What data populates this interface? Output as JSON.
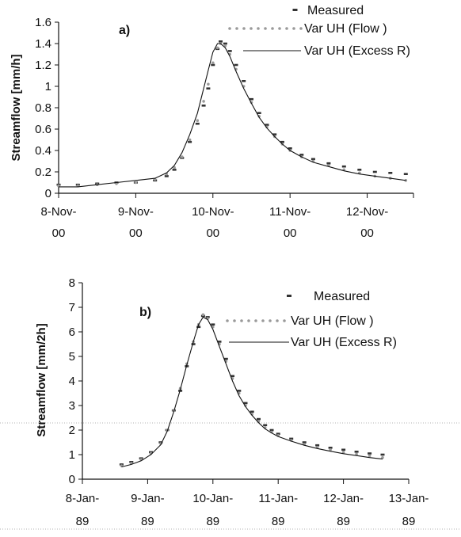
{
  "chart_data": [
    {
      "type": "line",
      "panel_label": "a)",
      "ylabel": "Streamflow [mm/h]",
      "xlabel": "",
      "x_unit": "days",
      "xlim": [
        0,
        4.6
      ],
      "ylim": [
        0,
        1.6
      ],
      "yticks": [
        "0",
        "0.2",
        "0.4",
        "0.6",
        "0.8",
        "1",
        "1.2",
        "1.4",
        "1.6"
      ],
      "xticks": [
        {
          "x": 0,
          "line1": "8-Nov-",
          "line2": "00"
        },
        {
          "x": 1,
          "line1": "9-Nov-",
          "line2": "00"
        },
        {
          "x": 2,
          "line1": "10-Nov-",
          "line2": "00"
        },
        {
          "x": 3,
          "line1": "11-Nov-",
          "line2": "00"
        },
        {
          "x": 4,
          "line1": "12-Nov-",
          "line2": "00"
        }
      ],
      "legend_position": "top-right",
      "series": [
        {
          "name": "Measured",
          "style": "dash-markers",
          "points": [
            [
              0.0,
              0.08
            ],
            [
              0.25,
              0.08
            ],
            [
              0.5,
              0.09
            ],
            [
              0.75,
              0.1
            ],
            [
              1.0,
              0.1
            ],
            [
              1.25,
              0.12
            ],
            [
              1.4,
              0.16
            ],
            [
              1.5,
              0.22
            ],
            [
              1.6,
              0.33
            ],
            [
              1.7,
              0.48
            ],
            [
              1.8,
              0.65
            ],
            [
              1.88,
              0.82
            ],
            [
              1.94,
              0.98
            ],
            [
              2.0,
              1.2
            ],
            [
              2.06,
              1.35
            ],
            [
              2.1,
              1.42
            ],
            [
              2.16,
              1.4
            ],
            [
              2.22,
              1.33
            ],
            [
              2.3,
              1.2
            ],
            [
              2.4,
              1.05
            ],
            [
              2.5,
              0.88
            ],
            [
              2.6,
              0.75
            ],
            [
              2.7,
              0.64
            ],
            [
              2.8,
              0.55
            ],
            [
              2.9,
              0.48
            ],
            [
              3.0,
              0.42
            ],
            [
              3.15,
              0.36
            ],
            [
              3.3,
              0.32
            ],
            [
              3.5,
              0.28
            ],
            [
              3.7,
              0.25
            ],
            [
              3.9,
              0.22
            ],
            [
              4.1,
              0.2
            ],
            [
              4.3,
              0.19
            ],
            [
              4.5,
              0.18
            ]
          ]
        },
        {
          "name": "Var UH (Flow )",
          "style": "dotted-markers",
          "points": [
            [
              0.0,
              0.07
            ],
            [
              0.25,
              0.07
            ],
            [
              0.5,
              0.08
            ],
            [
              0.75,
              0.09
            ],
            [
              1.0,
              0.1
            ],
            [
              1.25,
              0.13
            ],
            [
              1.4,
              0.18
            ],
            [
              1.5,
              0.24
            ],
            [
              1.6,
              0.34
            ],
            [
              1.7,
              0.5
            ],
            [
              1.8,
              0.68
            ],
            [
              1.88,
              0.86
            ],
            [
              1.94,
              1.02
            ],
            [
              2.0,
              1.22
            ],
            [
              2.06,
              1.36
            ],
            [
              2.1,
              1.4
            ],
            [
              2.16,
              1.38
            ],
            [
              2.22,
              1.3
            ],
            [
              2.3,
              1.16
            ],
            [
              2.4,
              1.0
            ],
            [
              2.5,
              0.85
            ],
            [
              2.6,
              0.72
            ],
            [
              2.7,
              0.62
            ],
            [
              2.8,
              0.53
            ],
            [
              2.9,
              0.46
            ],
            [
              3.0,
              0.4
            ],
            [
              3.15,
              0.34
            ],
            [
              3.3,
              0.3
            ],
            [
              3.5,
              0.26
            ],
            [
              3.7,
              0.22
            ],
            [
              3.9,
              0.19
            ],
            [
              4.1,
              0.16
            ],
            [
              4.3,
              0.14
            ],
            [
              4.5,
              0.12
            ]
          ]
        },
        {
          "name": "Var UH (Excess R)",
          "style": "solid",
          "points": [
            [
              0.0,
              0.06
            ],
            [
              0.25,
              0.06
            ],
            [
              0.5,
              0.08
            ],
            [
              0.75,
              0.1
            ],
            [
              1.0,
              0.12
            ],
            [
              1.25,
              0.14
            ],
            [
              1.4,
              0.19
            ],
            [
              1.5,
              0.26
            ],
            [
              1.6,
              0.38
            ],
            [
              1.7,
              0.55
            ],
            [
              1.8,
              0.75
            ],
            [
              1.88,
              0.98
            ],
            [
              1.94,
              1.15
            ],
            [
              2.0,
              1.32
            ],
            [
              2.06,
              1.4
            ],
            [
              2.1,
              1.4
            ],
            [
              2.16,
              1.36
            ],
            [
              2.22,
              1.28
            ],
            [
              2.3,
              1.14
            ],
            [
              2.4,
              0.98
            ],
            [
              2.5,
              0.84
            ],
            [
              2.6,
              0.71
            ],
            [
              2.7,
              0.61
            ],
            [
              2.8,
              0.53
            ],
            [
              2.9,
              0.46
            ],
            [
              3.0,
              0.4
            ],
            [
              3.15,
              0.34
            ],
            [
              3.3,
              0.29
            ],
            [
              3.5,
              0.25
            ],
            [
              3.7,
              0.21
            ],
            [
              3.9,
              0.18
            ],
            [
              4.1,
              0.16
            ],
            [
              4.3,
              0.14
            ],
            [
              4.5,
              0.12
            ]
          ]
        }
      ]
    },
    {
      "type": "line",
      "panel_label": "b)",
      "ylabel": "Streamflow [mm/2h]",
      "xlabel": "",
      "x_unit": "days",
      "xlim": [
        0,
        5
      ],
      "ylim": [
        0,
        8
      ],
      "yticks": [
        "0",
        "1",
        "2",
        "3",
        "4",
        "5",
        "6",
        "7",
        "8"
      ],
      "xticks": [
        {
          "x": 0,
          "line1": "8-Jan-",
          "line2": "89"
        },
        {
          "x": 1,
          "line1": "9-Jan-",
          "line2": "89"
        },
        {
          "x": 2,
          "line1": "10-Jan-",
          "line2": "89"
        },
        {
          "x": 3,
          "line1": "11-Jan-",
          "line2": "89"
        },
        {
          "x": 4,
          "line1": "12-Jan-",
          "line2": "89"
        },
        {
          "x": 5,
          "line1": "13-Jan-",
          "line2": "89"
        }
      ],
      "legend_position": "top-right",
      "series": [
        {
          "name": "Measured",
          "style": "dash-markers",
          "points": [
            [
              0.6,
              0.6
            ],
            [
              0.75,
              0.7
            ],
            [
              0.9,
              0.85
            ],
            [
              1.05,
              1.1
            ],
            [
              1.2,
              1.5
            ],
            [
              1.3,
              2.0
            ],
            [
              1.4,
              2.8
            ],
            [
              1.5,
              3.6
            ],
            [
              1.6,
              4.6
            ],
            [
              1.7,
              5.5
            ],
            [
              1.78,
              6.2
            ],
            [
              1.85,
              6.65
            ],
            [
              1.92,
              6.6
            ],
            [
              2.0,
              6.3
            ],
            [
              2.1,
              5.6
            ],
            [
              2.2,
              4.9
            ],
            [
              2.3,
              4.2
            ],
            [
              2.4,
              3.6
            ],
            [
              2.5,
              3.1
            ],
            [
              2.6,
              2.75
            ],
            [
              2.7,
              2.45
            ],
            [
              2.8,
              2.2
            ],
            [
              2.9,
              2.0
            ],
            [
              3.0,
              1.85
            ],
            [
              3.2,
              1.65
            ],
            [
              3.4,
              1.5
            ],
            [
              3.6,
              1.38
            ],
            [
              3.8,
              1.28
            ],
            [
              4.0,
              1.2
            ],
            [
              4.2,
              1.12
            ],
            [
              4.4,
              1.05
            ],
            [
              4.6,
              1.0
            ]
          ]
        },
        {
          "name": "Var UH (Flow )",
          "style": "dotted-markers",
          "points": [
            [
              0.6,
              0.55
            ],
            [
              0.75,
              0.65
            ],
            [
              0.9,
              0.8
            ],
            [
              1.05,
              1.05
            ],
            [
              1.2,
              1.45
            ],
            [
              1.3,
              2.0
            ],
            [
              1.4,
              2.8
            ],
            [
              1.5,
              3.7
            ],
            [
              1.6,
              4.7
            ],
            [
              1.7,
              5.6
            ],
            [
              1.78,
              6.3
            ],
            [
              1.85,
              6.7
            ],
            [
              1.92,
              6.55
            ],
            [
              2.0,
              6.2
            ],
            [
              2.1,
              5.5
            ],
            [
              2.2,
              4.8
            ],
            [
              2.3,
              4.1
            ],
            [
              2.4,
              3.5
            ],
            [
              2.5,
              3.0
            ],
            [
              2.6,
              2.65
            ],
            [
              2.7,
              2.35
            ],
            [
              2.8,
              2.1
            ],
            [
              2.9,
              1.92
            ],
            [
              3.0,
              1.78
            ],
            [
              3.2,
              1.58
            ],
            [
              3.4,
              1.42
            ],
            [
              3.6,
              1.3
            ],
            [
              3.8,
              1.2
            ],
            [
              4.0,
              1.1
            ],
            [
              4.2,
              1.02
            ],
            [
              4.4,
              0.95
            ],
            [
              4.6,
              0.88
            ]
          ]
        },
        {
          "name": "Var UH (Excess R)",
          "style": "solid",
          "points": [
            [
              0.6,
              0.5
            ],
            [
              0.75,
              0.6
            ],
            [
              0.9,
              0.75
            ],
            [
              1.05,
              1.0
            ],
            [
              1.2,
              1.4
            ],
            [
              1.3,
              1.95
            ],
            [
              1.4,
              2.75
            ],
            [
              1.5,
              3.65
            ],
            [
              1.6,
              4.65
            ],
            [
              1.7,
              5.6
            ],
            [
              1.78,
              6.3
            ],
            [
              1.85,
              6.6
            ],
            [
              1.92,
              6.5
            ],
            [
              2.0,
              6.1
            ],
            [
              2.1,
              5.4
            ],
            [
              2.2,
              4.7
            ],
            [
              2.3,
              4.0
            ],
            [
              2.4,
              3.4
            ],
            [
              2.5,
              2.95
            ],
            [
              2.6,
              2.6
            ],
            [
              2.7,
              2.3
            ],
            [
              2.8,
              2.05
            ],
            [
              2.9,
              1.88
            ],
            [
              3.0,
              1.74
            ],
            [
              3.2,
              1.55
            ],
            [
              3.4,
              1.38
            ],
            [
              3.6,
              1.25
            ],
            [
              3.8,
              1.14
            ],
            [
              4.0,
              1.04
            ],
            [
              4.2,
              0.96
            ],
            [
              4.4,
              0.88
            ],
            [
              4.6,
              0.82
            ]
          ]
        }
      ]
    }
  ]
}
